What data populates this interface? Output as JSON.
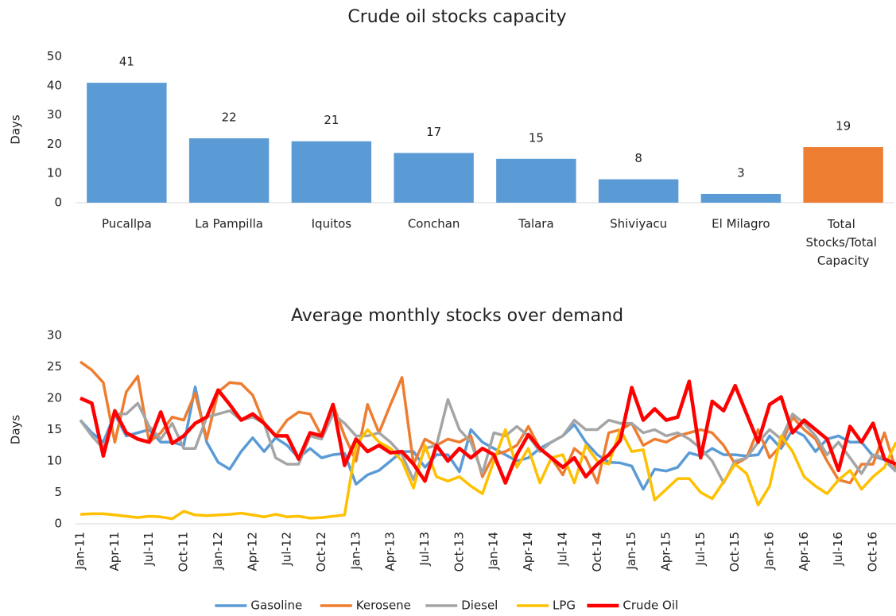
{
  "chart_data": [
    {
      "type": "bar",
      "title": "Crude oil stocks capacity",
      "y_label": "Days",
      "categories": [
        "Pucallpa",
        "La Pampilla",
        "Iquitos",
        "Conchan",
        "Talara",
        "Shiviyacu",
        "El Milagro",
        "Total Stocks/Total Capacity"
      ],
      "values": [
        41,
        22,
        21,
        17,
        15,
        8,
        3,
        19
      ],
      "colors": [
        "#5b9bd5",
        "#5b9bd5",
        "#5b9bd5",
        "#5b9bd5",
        "#5b9bd5",
        "#5b9bd5",
        "#5b9bd5",
        "#ed7d31"
      ],
      "ylim": [
        0,
        50
      ],
      "yticks": [
        0,
        10,
        20,
        30,
        40,
        50
      ],
      "grid": false
    },
    {
      "type": "line",
      "title": "Average monthly stocks over demand",
      "y_label": "Days",
      "categories": [
        "Jan-11",
        null,
        null,
        "Apr-11",
        null,
        null,
        "Jul-11",
        null,
        null,
        "Oct-11",
        null,
        null,
        "Jan-12",
        null,
        null,
        "Apr-12",
        null,
        null,
        "Jul-12",
        null,
        null,
        "Oct-12",
        null,
        null,
        "Jan-13",
        null,
        null,
        "Apr-13",
        null,
        null,
        "Jul-13",
        null,
        null,
        "Oct-13",
        null,
        null,
        "Jan-14",
        null,
        null,
        "Apr-14",
        null,
        null,
        "Jul-14",
        null,
        null,
        "Oct-14",
        null,
        null,
        "Jan-15",
        null,
        null,
        "Apr-15",
        null,
        null,
        "Jul-15",
        null,
        null,
        "Oct-15",
        null,
        null,
        "Jan-16",
        null,
        null,
        "Apr-16",
        null,
        null,
        "Jul-16",
        null,
        null,
        "Oct-16",
        null,
        null
      ],
      "series": [
        {
          "name": "Gasoline",
          "color": "#5b9bd5",
          "values": [
            16.5,
            14.5,
            13,
            17.5,
            14,
            14.5,
            15,
            13,
            13,
            12.5,
            21.8,
            13,
            9.8,
            8.7,
            11.5,
            13.7,
            11.5,
            13.7,
            12.5,
            10.5,
            12,
            10.5,
            11,
            11.2,
            6.3,
            7.8,
            8.5,
            10,
            11.5,
            11.5,
            9,
            11,
            11,
            8.3,
            15,
            13,
            12,
            11,
            10,
            10.5,
            12,
            13,
            14,
            15.8,
            13,
            11,
            9.8,
            9.7,
            9.2,
            5.5,
            8.7,
            8.4,
            9,
            11.3,
            10.8,
            12,
            11,
            11,
            10.8,
            11,
            14,
            12,
            15,
            14,
            11.5,
            13.5,
            14,
            13,
            13,
            10.8,
            10.2,
            8.3
          ]
        },
        {
          "name": "Kerosene",
          "color": "#ed7d31",
          "values": [
            25.8,
            24.5,
            22.5,
            13,
            21,
            23.5,
            13,
            14.5,
            17,
            16.5,
            20.8,
            13.5,
            21,
            22.5,
            22.3,
            20.5,
            16,
            14,
            16.5,
            17.8,
            17.5,
            14,
            19,
            14,
            10,
            19,
            14.5,
            19,
            23.3,
            9.5,
            13.5,
            12.5,
            13.5,
            13,
            14,
            7.5,
            11,
            11.5,
            12.5,
            15.5,
            12,
            10.5,
            7.8,
            12,
            10.5,
            6.5,
            14.5,
            15,
            16,
            12.5,
            13.5,
            13,
            14,
            14.5,
            15,
            14.5,
            12.5,
            9.5,
            10.5,
            15,
            10.5,
            12.5,
            17,
            15,
            13.5,
            10,
            7,
            6.5,
            9.5,
            9.5,
            14.5,
            8.5
          ]
        },
        {
          "name": "Diesel",
          "color": "#a5a5a5",
          "values": [
            16.5,
            14,
            12,
            17.5,
            17.5,
            19.2,
            15.5,
            13.5,
            16,
            12,
            12,
            17,
            17.5,
            18,
            16.5,
            17,
            16,
            10.5,
            9.5,
            9.5,
            14,
            13.5,
            17.5,
            16,
            14,
            14,
            14.5,
            13,
            11,
            7,
            12,
            12.5,
            19.8,
            15,
            13,
            8,
            14.5,
            14,
            15.5,
            14,
            11.5,
            13,
            14,
            16.5,
            15,
            15,
            16.5,
            16,
            16,
            14.5,
            15,
            14,
            14.5,
            13.5,
            12,
            10,
            6.5,
            10,
            10.5,
            13,
            15,
            13.5,
            17.5,
            16,
            14,
            11,
            13,
            10.5,
            8,
            11,
            10.5,
            8.3
          ]
        },
        {
          "name": "LPG",
          "color": "#ffc000",
          "values": [
            1.5,
            1.6,
            1.6,
            1.4,
            1.2,
            1.0,
            1.2,
            1.1,
            0.8,
            2.0,
            1.4,
            1.3,
            1.4,
            1.5,
            1.7,
            1.4,
            1.1,
            1.5,
            1.1,
            1.2,
            0.9,
            1.0,
            1.2,
            1.4,
            12.5,
            15,
            13,
            12,
            10,
            5.7,
            12.5,
            7.5,
            6.8,
            7.5,
            6,
            4.8,
            10,
            15,
            9,
            12,
            6.5,
            10.5,
            11,
            6.5,
            12.5,
            10,
            9.5,
            15,
            11.5,
            11.8,
            3.8,
            5.5,
            7.2,
            7.2,
            5,
            4,
            6.7,
            9.5,
            8,
            3,
            6,
            14,
            11.5,
            7.5,
            6,
            4.8,
            7,
            8.5,
            5.5,
            7.5,
            9,
            13
          ]
        },
        {
          "name": "Crude Oil",
          "color": "#ff0000",
          "values": [
            20,
            19.2,
            10.8,
            18,
            14.5,
            13.5,
            13,
            17.8,
            12.8,
            14,
            16,
            17,
            21.3,
            19,
            16.5,
            17.5,
            16,
            14,
            14,
            10.3,
            14.5,
            14,
            19,
            9.3,
            13.5,
            11.5,
            12.5,
            11.3,
            11.5,
            9.5,
            6.8,
            12.5,
            10,
            12,
            10.5,
            12,
            11,
            6.5,
            11,
            14.2,
            12,
            10.5,
            9,
            10.5,
            7.5,
            9.5,
            11,
            13.3,
            21.7,
            16.5,
            18.3,
            16.5,
            17,
            22.7,
            10.5,
            19.5,
            18,
            22,
            17.5,
            13,
            19,
            20.2,
            14.5,
            16.5,
            15,
            13.5,
            8.5,
            15.5,
            13,
            16,
            10.3,
            9.5
          ]
        }
      ],
      "ylim": [
        0,
        30
      ],
      "yticks": [
        0,
        5,
        10,
        15,
        20,
        25,
        30
      ],
      "grid": false,
      "legend": "bottom"
    }
  ]
}
